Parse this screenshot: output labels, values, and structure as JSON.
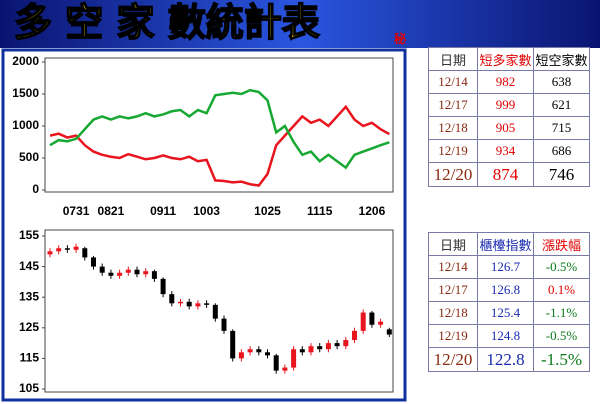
{
  "header": {
    "title": "多 空 家 數統計表",
    "badge": "秘"
  },
  "chart_data": [
    {
      "type": "line",
      "categories": [
        null,
        null,
        null,
        "0731",
        null,
        null,
        null,
        "0821",
        null,
        null,
        null,
        null,
        null,
        "0911",
        null,
        null,
        null,
        null,
        "1003",
        null,
        null,
        null,
        null,
        null,
        null,
        "1025",
        null,
        null,
        null,
        null,
        null,
        "1115",
        null,
        null,
        null,
        null,
        null,
        "1206",
        null,
        null
      ],
      "series": [
        {
          "color": "#e8141e",
          "values": [
            850,
            880,
            820,
            850,
            700,
            600,
            550,
            520,
            500,
            560,
            520,
            480,
            500,
            540,
            500,
            480,
            520,
            450,
            470,
            150,
            140,
            120,
            130,
            90,
            70,
            250,
            700,
            850,
            1000,
            1150,
            1050,
            1100,
            1000,
            1150,
            1300,
            1100,
            1000,
            1050,
            950,
            874
          ]
        },
        {
          "color": "#16a832",
          "values": [
            700,
            780,
            760,
            800,
            950,
            1100,
            1150,
            1100,
            1150,
            1120,
            1150,
            1200,
            1150,
            1180,
            1230,
            1250,
            1150,
            1250,
            1200,
            1480,
            1500,
            1520,
            1500,
            1560,
            1530,
            1400,
            900,
            1000,
            750,
            550,
            600,
            450,
            550,
            450,
            350,
            550,
            600,
            650,
            700,
            746
          ]
        }
      ],
      "ylim": [
        0,
        2000
      ],
      "yticks": [
        0,
        500,
        1000,
        1500,
        2000
      ]
    },
    {
      "type": "candlestick",
      "open": [
        149,
        150,
        151,
        150.5,
        151,
        148,
        145,
        143,
        142,
        143,
        144,
        142.5,
        143.5,
        141,
        136,
        133,
        133.5,
        132,
        133,
        132.5,
        128,
        124,
        115,
        117,
        118,
        117,
        116,
        111,
        112,
        118,
        117,
        119,
        118,
        120,
        119,
        121,
        124,
        130,
        126,
        124.5
      ],
      "high": [
        151,
        152,
        152,
        152.5,
        151.5,
        148.5,
        146,
        144,
        144,
        145,
        145,
        144.5,
        144,
        141.5,
        137,
        134.5,
        134.5,
        134,
        134,
        133,
        129,
        124.5,
        118,
        119,
        119,
        118,
        116.5,
        113,
        119,
        119,
        120,
        120,
        121,
        121,
        122,
        125,
        131,
        130.5,
        128,
        125
      ],
      "low": [
        148,
        149,
        149.5,
        149.5,
        147,
        144,
        142,
        141,
        141,
        142,
        141.5,
        141.5,
        140,
        135,
        132,
        132,
        131,
        131,
        131.5,
        127,
        123,
        114,
        114,
        116,
        116,
        115,
        110,
        110,
        111,
        116,
        116,
        117,
        117,
        118,
        118,
        120,
        123,
        125,
        125,
        122
      ],
      "close": [
        150,
        151,
        150.5,
        151.5,
        148,
        145,
        143,
        142,
        143,
        144,
        142.5,
        143.5,
        141,
        136,
        133,
        133.5,
        132,
        133,
        132.5,
        128,
        124,
        115,
        117,
        118,
        117,
        116,
        111,
        112,
        118,
        117,
        119,
        118,
        120,
        119,
        121,
        124,
        130,
        126,
        127,
        122.8
      ],
      "up_color": "#e8141e",
      "down_color": "#000000",
      "ylim": [
        105,
        155
      ],
      "yticks": [
        105,
        115,
        125,
        135,
        145,
        155
      ]
    }
  ],
  "tables": [
    {
      "header": [
        "日期",
        "短多家數",
        "短空家數"
      ],
      "rows": [
        [
          "12/14",
          "982",
          "638"
        ],
        [
          "12/17",
          "999",
          "621"
        ],
        [
          "12/18",
          "905",
          "715"
        ],
        [
          "12/19",
          "934",
          "686"
        ],
        [
          "12/20",
          "874",
          "746"
        ]
      ]
    },
    {
      "header": [
        "日期",
        "櫃檯指數",
        "漲跌幅"
      ],
      "rows": [
        [
          "12/14",
          "126.7",
          "-0.5%"
        ],
        [
          "12/17",
          "126.8",
          "0.1%"
        ],
        [
          "12/18",
          "125.4",
          "-1.1%"
        ],
        [
          "12/19",
          "124.8",
          "-0.5%"
        ],
        [
          "12/20",
          "122.8",
          "-1.5%"
        ]
      ]
    }
  ]
}
